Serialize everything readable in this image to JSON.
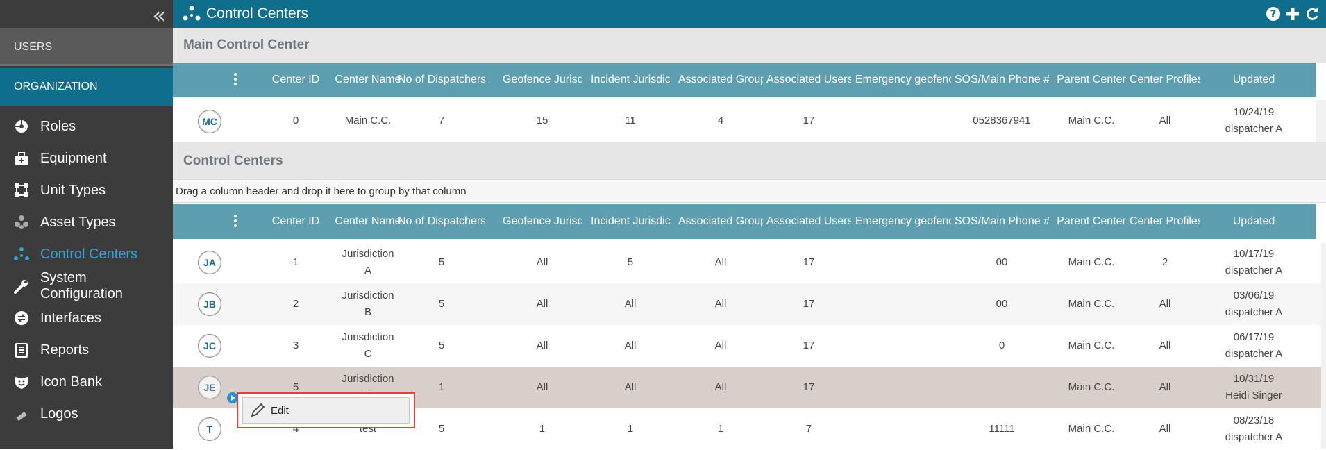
{
  "sidebar": {
    "users_label": "USERS",
    "organization_label": "ORGANIZATION",
    "items": [
      {
        "label": "Roles",
        "icon": "roles-icon"
      },
      {
        "label": "Equipment",
        "icon": "equipment-icon"
      },
      {
        "label": "Unit Types",
        "icon": "unit-types-icon"
      },
      {
        "label": "Asset Types",
        "icon": "asset-types-icon"
      },
      {
        "label": "Control Centers",
        "icon": "control-centers-icon"
      },
      {
        "label": "System Configuration",
        "icon": "wrench-icon"
      },
      {
        "label": "Interfaces",
        "icon": "interfaces-icon"
      },
      {
        "label": "Reports",
        "icon": "reports-icon"
      },
      {
        "label": "Icon Bank",
        "icon": "icon-bank-icon"
      },
      {
        "label": "Logos",
        "icon": "logos-icon"
      }
    ],
    "active_index": 4
  },
  "header": {
    "title": "Control Centers"
  },
  "main_section": {
    "title": "Main Control Center"
  },
  "centers_section": {
    "title": "Control Centers",
    "group_hint": "Drag a column header and drop it here to group by that column"
  },
  "columns": [
    "Center ID",
    "Center Name",
    "No of Dispatchers",
    "Geofence Jurisdic",
    "Incident Jurisdictio",
    "Associated Group",
    "Associated Users",
    "Emergency geofence",
    "SOS/Main Phone #",
    "Parent Center",
    "Center Profiles",
    "Updated"
  ],
  "main_rows": [
    {
      "avatar": "MC",
      "id": "0",
      "name_1": "Main C.C.",
      "name_2": "",
      "dispatchers": "7",
      "geofence": "15",
      "incident": "11",
      "groups": "4",
      "users": "17",
      "emergency": "",
      "phone": "0528367941",
      "parent": "Main C.C.",
      "profiles": "All",
      "updated_date": "10/24/19",
      "updated_by": "dispatcher A"
    }
  ],
  "rows": [
    {
      "avatar": "JA",
      "id": "1",
      "name_1": "Jurisdiction",
      "name_2": "A",
      "dispatchers": "5",
      "geofence": "All",
      "incident": "5",
      "groups": "All",
      "users": "17",
      "emergency": "",
      "phone": "00",
      "parent": "Main C.C.",
      "profiles": "2",
      "updated_date": "10/17/19",
      "updated_by": "dispatcher A"
    },
    {
      "avatar": "JB",
      "id": "2",
      "name_1": "Jurisdiction",
      "name_2": "B",
      "dispatchers": "5",
      "geofence": "All",
      "incident": "All",
      "groups": "All",
      "users": "17",
      "emergency": "",
      "phone": "00",
      "parent": "Main C.C.",
      "profiles": "All",
      "updated_date": "03/06/19",
      "updated_by": "dispatcher A"
    },
    {
      "avatar": "JC",
      "id": "3",
      "name_1": "Jurisdiction",
      "name_2": "C",
      "dispatchers": "5",
      "geofence": "All",
      "incident": "All",
      "groups": "All",
      "users": "17",
      "emergency": "",
      "phone": "0",
      "parent": "Main C.C.",
      "profiles": "All",
      "updated_date": "06/17/19",
      "updated_by": "dispatcher A"
    },
    {
      "avatar": "JE",
      "id": "5",
      "name_1": "Jurisdiction",
      "name_2": "E",
      "dispatchers": "1",
      "geofence": "All",
      "incident": "All",
      "groups": "All",
      "users": "17",
      "emergency": "",
      "phone": "",
      "parent": "Main C.C.",
      "profiles": "All",
      "updated_date": "10/31/19",
      "updated_by": "Heidi Singer"
    },
    {
      "avatar": "T",
      "id": "4",
      "name_1": "test",
      "name_2": "",
      "dispatchers": "5",
      "geofence": "1",
      "incident": "1",
      "groups": "1",
      "users": "7",
      "emergency": "",
      "phone": "11111",
      "parent": "Main C.C.",
      "profiles": "All",
      "updated_date": "08/23/18",
      "updated_by": "dispatcher A"
    }
  ],
  "context_menu": {
    "edit_label": "Edit"
  },
  "colors": {
    "topbar": "#0f6e8c",
    "sidebar": "#3c3c3c",
    "grid_header": "#5d9fb0",
    "highlight_row": "#d8cfcb",
    "active_link": "#2da7d4",
    "context_border": "#e2403a"
  }
}
